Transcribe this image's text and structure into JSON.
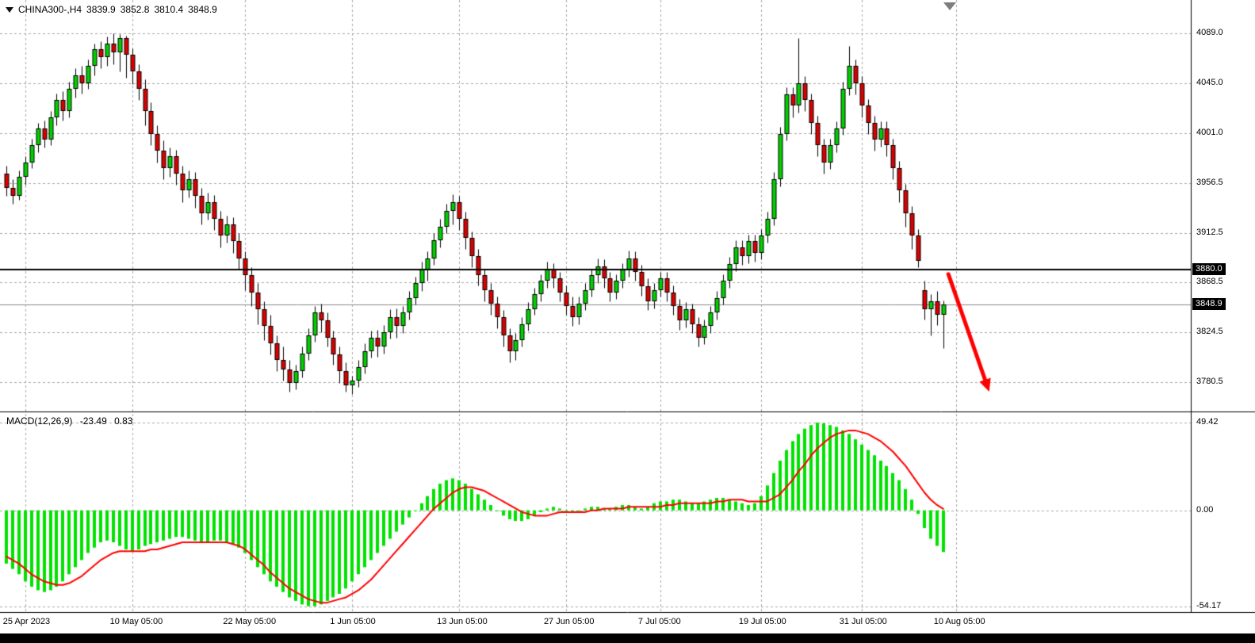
{
  "header": {
    "symbol": "CHINA300-,H4",
    "open": "3839.9",
    "high": "3852.8",
    "low": "3810.4",
    "close": "3848.9"
  },
  "colors": {
    "background": "#ffffff",
    "grid": "#a9a9a9",
    "bull": "#00d200",
    "bear": "#dd0000",
    "candle_outline": "#000000",
    "macd_histogram": "#00e300",
    "macd_signal": "#ff0000",
    "horizontal_line": "#000000",
    "bid_line": "#8a8a8a",
    "arrow": "#ff0000",
    "axis_text": "#000000",
    "price_marker_bg": "#000000",
    "price_marker_text": "#ffffff",
    "separator": "#000000",
    "bottom_bar": "#000000"
  },
  "price_axis": {
    "labels": [
      {
        "text": "4089.0",
        "price": 4089.0,
        "boxed": false
      },
      {
        "text": "4045.0",
        "price": 4045.0,
        "boxed": false
      },
      {
        "text": "4001.0",
        "price": 4001.0,
        "boxed": false
      },
      {
        "text": "3956.5",
        "price": 3956.5,
        "boxed": false
      },
      {
        "text": "3912.5",
        "price": 3912.5,
        "boxed": false
      },
      {
        "text": "3880.0",
        "price": 3880.0,
        "boxed": true
      },
      {
        "text": "3868.5",
        "price": 3868.5,
        "boxed": false
      },
      {
        "text": "3848.9",
        "price": 3848.9,
        "boxed": true
      },
      {
        "text": "3824.5",
        "price": 3824.5,
        "boxed": false
      },
      {
        "text": "3780.5",
        "price": 3780.5,
        "boxed": false
      }
    ]
  },
  "time_axis": {
    "ticks": [
      {
        "label": "25 Apr 2023",
        "bar": 3
      },
      {
        "label": "10 May 05:00",
        "bar": 20
      },
      {
        "label": "22 May 05:00",
        "bar": 38
      },
      {
        "label": "1 Jun 05:00",
        "bar": 55
      },
      {
        "label": "13 Jun 05:00",
        "bar": 72
      },
      {
        "label": "27 Jun 05:00",
        "bar": 89
      },
      {
        "label": "7 Jul 05:00",
        "bar": 104
      },
      {
        "label": "19 Jul 05:00",
        "bar": 120
      },
      {
        "label": "31 Jul 05:00",
        "bar": 136
      },
      {
        "label": "10 Aug 05:00",
        "bar": 151
      }
    ]
  },
  "macd_panel": {
    "label": "MACD(12,26,9)",
    "macd_value": "-23.49",
    "signal_value": "0.83",
    "axis": [
      {
        "text": "49.42",
        "value": 49.42
      },
      {
        "text": "0.00",
        "value": 0.0
      },
      {
        "text": "-54.17",
        "value": -54.17
      }
    ]
  },
  "chart_data": [
    {
      "type": "candlestick",
      "symbol": "CHINA300-,H4",
      "timeframe": "H4",
      "ylim": [
        3780.5,
        4089.0
      ],
      "grid_prices": [
        4089.0,
        4045.0,
        4001.0,
        3956.5,
        3912.5,
        3868.5,
        3824.5,
        3780.5
      ],
      "horizontal_line": 3880.0,
      "last_price": 3848.9,
      "ohlc": [
        [
          3965,
          3972,
          3945,
          3952
        ],
        [
          3952,
          3960,
          3938,
          3945
        ],
        [
          3945,
          3968,
          3942,
          3962
        ],
        [
          3962,
          3980,
          3955,
          3975
        ],
        [
          3975,
          3996,
          3970,
          3990
        ],
        [
          3990,
          4010,
          3984,
          4005
        ],
        [
          4005,
          4012,
          3988,
          3995
        ],
        [
          3995,
          4020,
          3990,
          4015
        ],
        [
          4015,
          4036,
          4008,
          4030
        ],
        [
          4030,
          4038,
          4012,
          4020
        ],
        [
          4020,
          4046,
          4015,
          4040
        ],
        [
          4040,
          4058,
          4032,
          4052
        ],
        [
          4052,
          4060,
          4036,
          4045
        ],
        [
          4045,
          4066,
          4040,
          4060
        ],
        [
          4060,
          4080,
          4052,
          4075
        ],
        [
          4075,
          4082,
          4058,
          4068
        ],
        [
          4068,
          4086,
          4060,
          4080
        ],
        [
          4080,
          4089,
          4062,
          4072
        ],
        [
          4072,
          4088,
          4055,
          4085
        ],
        [
          4085,
          4087,
          4050,
          4070
        ],
        [
          4070,
          4076,
          4044,
          4055
        ],
        [
          4055,
          4062,
          4030,
          4040
        ],
        [
          4040,
          4048,
          4008,
          4020
        ],
        [
          4020,
          4028,
          3990,
          4000
        ],
        [
          4000,
          4008,
          3975,
          3985
        ],
        [
          3985,
          3994,
          3960,
          3970
        ],
        [
          3970,
          3988,
          3962,
          3980
        ],
        [
          3980,
          3986,
          3955,
          3965
        ],
        [
          3965,
          3972,
          3940,
          3950
        ],
        [
          3950,
          3968,
          3944,
          3960
        ],
        [
          3960,
          3966,
          3935,
          3945
        ],
        [
          3945,
          3952,
          3920,
          3930
        ],
        [
          3930,
          3948,
          3924,
          3940
        ],
        [
          3940,
          3946,
          3915,
          3925
        ],
        [
          3925,
          3932,
          3900,
          3910
        ],
        [
          3910,
          3928,
          3904,
          3920
        ],
        [
          3920,
          3926,
          3895,
          3905
        ],
        [
          3905,
          3912,
          3880,
          3890
        ],
        [
          3890,
          3896,
          3862,
          3875
        ],
        [
          3875,
          3882,
          3848,
          3860
        ],
        [
          3860,
          3868,
          3832,
          3845
        ],
        [
          3845,
          3852,
          3818,
          3830
        ],
        [
          3830,
          3840,
          3805,
          3815
        ],
        [
          3815,
          3822,
          3790,
          3800
        ],
        [
          3800,
          3812,
          3782,
          3792
        ],
        [
          3792,
          3800,
          3772,
          3780
        ],
        [
          3780,
          3796,
          3774,
          3790
        ],
        [
          3790,
          3812,
          3785,
          3806
        ],
        [
          3806,
          3828,
          3800,
          3822
        ],
        [
          3822,
          3848,
          3816,
          3842
        ],
        [
          3842,
          3850,
          3825,
          3835
        ],
        [
          3835,
          3842,
          3812,
          3820
        ],
        [
          3820,
          3826,
          3796,
          3805
        ],
        [
          3805,
          3812,
          3780,
          3790
        ],
        [
          3790,
          3798,
          3772,
          3778
        ],
        [
          3778,
          3786,
          3770,
          3782
        ],
        [
          3782,
          3800,
          3776,
          3794
        ],
        [
          3794,
          3815,
          3788,
          3808
        ],
        [
          3808,
          3826,
          3802,
          3820
        ],
        [
          3820,
          3827,
          3803,
          3812
        ],
        [
          3812,
          3831,
          3806,
          3825
        ],
        [
          3825,
          3845,
          3819,
          3838
        ],
        [
          3838,
          3846,
          3820,
          3830
        ],
        [
          3830,
          3848,
          3824,
          3842
        ],
        [
          3842,
          3861,
          3836,
          3855
        ],
        [
          3855,
          3874,
          3849,
          3868
        ],
        [
          3868,
          3887,
          3861,
          3880
        ],
        [
          3880,
          3896,
          3870,
          3890
        ],
        [
          3890,
          3912,
          3884,
          3906
        ],
        [
          3906,
          3925,
          3900,
          3918
        ],
        [
          3918,
          3938,
          3912,
          3932
        ],
        [
          3932,
          3947,
          3920,
          3940
        ],
        [
          3940,
          3945,
          3915,
          3925
        ],
        [
          3925,
          3931,
          3898,
          3908
        ],
        [
          3908,
          3914,
          3882,
          3892
        ],
        [
          3892,
          3898,
          3866,
          3875
        ],
        [
          3875,
          3881,
          3852,
          3862
        ],
        [
          3862,
          3868,
          3840,
          3850
        ],
        [
          3850,
          3856,
          3828,
          3838
        ],
        [
          3838,
          3844,
          3812,
          3822
        ],
        [
          3822,
          3828,
          3798,
          3808
        ],
        [
          3808,
          3824,
          3800,
          3818
        ],
        [
          3818,
          3838,
          3812,
          3832
        ],
        [
          3832,
          3851,
          3826,
          3845
        ],
        [
          3845,
          3864,
          3840,
          3858
        ],
        [
          3858,
          3876,
          3852,
          3870
        ],
        [
          3870,
          3887,
          3864,
          3880
        ],
        [
          3880,
          3886,
          3864,
          3872
        ],
        [
          3872,
          3878,
          3852,
          3860
        ],
        [
          3860,
          3866,
          3840,
          3848
        ],
        [
          3848,
          3856,
          3830,
          3838
        ],
        [
          3838,
          3856,
          3832,
          3850
        ],
        [
          3850,
          3868,
          3844,
          3862
        ],
        [
          3862,
          3881,
          3856,
          3875
        ],
        [
          3875,
          3890,
          3868,
          3883
        ],
        [
          3883,
          3889,
          3864,
          3872
        ],
        [
          3872,
          3878,
          3852,
          3860
        ],
        [
          3860,
          3876,
          3854,
          3870
        ],
        [
          3870,
          3886,
          3864,
          3880
        ],
        [
          3880,
          3897,
          3874,
          3890
        ],
        [
          3890,
          3896,
          3870,
          3878
        ],
        [
          3878,
          3884,
          3857,
          3865
        ],
        [
          3865,
          3872,
          3844,
          3852
        ],
        [
          3852,
          3868,
          3846,
          3862
        ],
        [
          3862,
          3878,
          3856,
          3872
        ],
        [
          3872,
          3878,
          3852,
          3860
        ],
        [
          3860,
          3866,
          3840,
          3848
        ],
        [
          3848,
          3854,
          3827,
          3835
        ],
        [
          3835,
          3851,
          3829,
          3845
        ],
        [
          3845,
          3850,
          3824,
          3832
        ],
        [
          3832,
          3838,
          3812,
          3820
        ],
        [
          3820,
          3836,
          3814,
          3830
        ],
        [
          3830,
          3848,
          3824,
          3842
        ],
        [
          3842,
          3861,
          3836,
          3855
        ],
        [
          3855,
          3876,
          3849,
          3870
        ],
        [
          3870,
          3891,
          3864,
          3885
        ],
        [
          3885,
          3906,
          3879,
          3900
        ],
        [
          3900,
          3906,
          3884,
          3892
        ],
        [
          3892,
          3911,
          3886,
          3905
        ],
        [
          3905,
          3911,
          3887,
          3895
        ],
        [
          3895,
          3916,
          3889,
          3910
        ],
        [
          3910,
          3931,
          3904,
          3925
        ],
        [
          3925,
          3966,
          3919,
          3960
        ],
        [
          3960,
          4006,
          3954,
          4000
        ],
        [
          4000,
          4041,
          3994,
          4035
        ],
        [
          4035,
          4041,
          4015,
          4025
        ],
        [
          4025,
          4085,
          4019,
          4045
        ],
        [
          4045,
          4051,
          4020,
          4030
        ],
        [
          4030,
          4036,
          4000,
          4010
        ],
        [
          4010,
          4016,
          3980,
          3990
        ],
        [
          3990,
          3996,
          3965,
          3975
        ],
        [
          3975,
          3996,
          3969,
          3990
        ],
        [
          3990,
          4011,
          3984,
          4005
        ],
        [
          4005,
          4046,
          3999,
          4040
        ],
        [
          4040,
          4078,
          4034,
          4060
        ],
        [
          4060,
          4066,
          4035,
          4045
        ],
        [
          4045,
          4051,
          4015,
          4025
        ],
        [
          4025,
          4031,
          4000,
          4010
        ],
        [
          4010,
          4016,
          3985,
          3995
        ],
        [
          3995,
          4011,
          3989,
          4005
        ],
        [
          4005,
          4011,
          3980,
          3990
        ],
        [
          3990,
          3996,
          3960,
          3970
        ],
        [
          3970,
          3976,
          3940,
          3950
        ],
        [
          3950,
          3956,
          3918,
          3930
        ],
        [
          3930,
          3936,
          3898,
          3910
        ],
        [
          3910,
          3916,
          3882,
          3888
        ],
        [
          3862,
          3870,
          3836,
          3845
        ],
        [
          3845,
          3858,
          3822,
          3852
        ],
        [
          3852,
          3861,
          3831,
          3840
        ],
        [
          3839.9,
          3852.8,
          3810.4,
          3848.9
        ]
      ],
      "annotations": [
        {
          "type": "arrow",
          "direction": "down-right",
          "color": "#ff0000",
          "from": {
            "bar": 149.8,
            "price": 3876
          },
          "to": {
            "bar": 156.3,
            "price": 3772
          }
        }
      ]
    },
    {
      "type": "macd",
      "name": "MACD(12,26,9)",
      "ylim": [
        -54.17,
        49.42
      ],
      "grid_values": [
        49.42,
        0.0,
        -54.17
      ],
      "current_histogram": -23.49,
      "current_signal": 0.83,
      "histogram": [
        -30,
        -33,
        -36,
        -40,
        -43,
        -45,
        -46,
        -45,
        -43,
        -40,
        -36,
        -32,
        -28,
        -24,
        -21,
        -18,
        -17,
        -18,
        -20,
        -22,
        -23,
        -22,
        -20,
        -19,
        -18,
        -17,
        -16,
        -15,
        -15,
        -16,
        -17,
        -18,
        -18,
        -17,
        -17,
        -18,
        -19,
        -21,
        -24,
        -28,
        -32,
        -36,
        -40,
        -43,
        -46,
        -49,
        -51,
        -53,
        -54,
        -54,
        -53,
        -51,
        -49,
        -47,
        -44,
        -40,
        -36,
        -32,
        -28,
        -24,
        -20,
        -16,
        -12,
        -8,
        -4,
        0,
        4,
        8,
        12,
        15,
        17,
        18,
        17,
        15,
        12,
        9,
        6,
        3,
        0,
        -3,
        -5,
        -6,
        -6,
        -5,
        -3,
        -1,
        1,
        2,
        1,
        0,
        -1,
        0,
        1,
        2,
        2,
        1,
        1,
        2,
        3,
        3,
        2,
        1,
        2,
        4,
        5,
        5,
        6,
        6,
        5,
        4,
        4,
        5,
        6,
        7,
        7,
        6,
        5,
        4,
        3,
        4,
        8,
        14,
        21,
        28,
        34,
        39,
        43,
        46,
        48,
        49.4,
        49,
        48,
        47,
        45,
        43,
        40,
        37,
        34,
        31,
        28,
        25,
        21,
        17,
        12,
        6,
        -2,
        -10,
        -16,
        -20,
        -23.49
      ],
      "signal": [
        -26,
        -28,
        -30,
        -33,
        -36,
        -38,
        -40,
        -41,
        -42,
        -42,
        -41,
        -39,
        -37,
        -34,
        -31,
        -28,
        -26,
        -24,
        -23,
        -23,
        -23,
        -23,
        -23,
        -22,
        -22,
        -21,
        -20,
        -19,
        -18,
        -18,
        -18,
        -18,
        -18,
        -18,
        -18,
        -18,
        -19,
        -20,
        -22,
        -25,
        -28,
        -31,
        -35,
        -38,
        -41,
        -44,
        -46,
        -48,
        -50,
        -51,
        -52,
        -52,
        -51,
        -50,
        -49,
        -47,
        -45,
        -42,
        -39,
        -35,
        -31,
        -27,
        -23,
        -19,
        -15,
        -11,
        -7,
        -3,
        1,
        4,
        7,
        10,
        12,
        13,
        13,
        12,
        11,
        9,
        7,
        5,
        3,
        1,
        -1,
        -2,
        -3,
        -3,
        -3,
        -2,
        -1,
        -1,
        -1,
        -1,
        -1,
        0,
        0,
        1,
        1,
        1,
        1,
        2,
        2,
        2,
        2,
        2,
        2,
        3,
        3,
        4,
        4,
        4,
        4,
        4,
        4,
        5,
        5,
        6,
        6,
        6,
        5,
        5,
        5,
        5,
        7,
        9,
        13,
        17,
        22,
        26,
        31,
        35,
        38,
        41,
        43,
        44,
        45,
        45,
        44,
        43,
        41,
        39,
        36,
        33,
        29,
        25,
        20,
        15,
        10,
        6,
        3,
        0.83
      ]
    }
  ]
}
